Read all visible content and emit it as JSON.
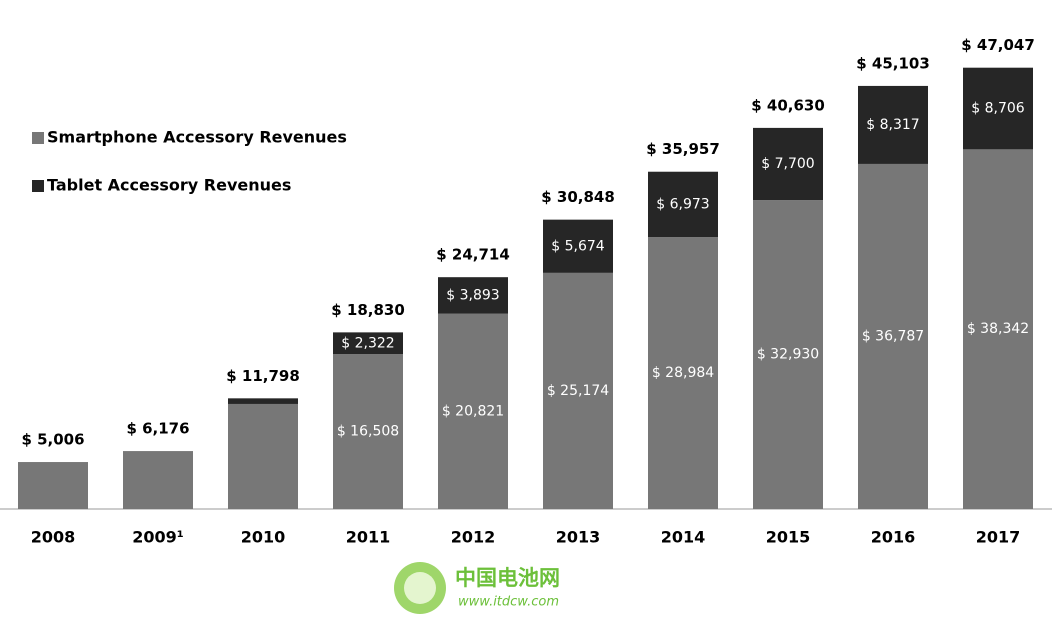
{
  "chart_data": {
    "type": "stacked-bar",
    "categories": [
      "2008",
      "2009¹",
      "2010",
      "2011",
      "2012",
      "2013",
      "2014",
      "2015",
      "2016",
      "2017"
    ],
    "series": [
      {
        "name": "Smartphone Accessory Revenues",
        "color": "#777777",
        "values": [
          5006,
          6176,
          11198,
          16508,
          20821,
          25174,
          28984,
          32930,
          36787,
          38342
        ],
        "value_labels": [
          null,
          null,
          null,
          "$ 16,508",
          "$ 20,821",
          "$ 25,174",
          "$ 28,984",
          "$ 32,930",
          "$ 36,787",
          "$ 38,342"
        ]
      },
      {
        "name": "Tablet Accessory Revenues",
        "color": "#262626",
        "values": [
          null,
          null,
          600,
          2322,
          3893,
          5674,
          6973,
          7700,
          8317,
          8706
        ],
        "value_labels": [
          null,
          null,
          null,
          "$ 2,322",
          "$ 3,893",
          "$ 5,674",
          "$ 6,973",
          "$ 7,700",
          "$ 8,317",
          "$ 8,706"
        ]
      }
    ],
    "totals": {
      "values": [
        5006,
        6176,
        11798,
        18830,
        24714,
        30848,
        35957,
        40630,
        45103,
        47047
      ],
      "value_labels": [
        "$ 5,006",
        "$ 6,176",
        "$ 11,798",
        "$ 18,830",
        "$ 24,714",
        "$ 30,848",
        "$ 35,957",
        "$ 40,630",
        "$ 45,103",
        "$ 47,047"
      ]
    },
    "ylim": [
      0,
      50000
    ],
    "legend": "top-left"
  },
  "watermark": {
    "title": "中国电池网",
    "url": "www.itdcw.com"
  }
}
